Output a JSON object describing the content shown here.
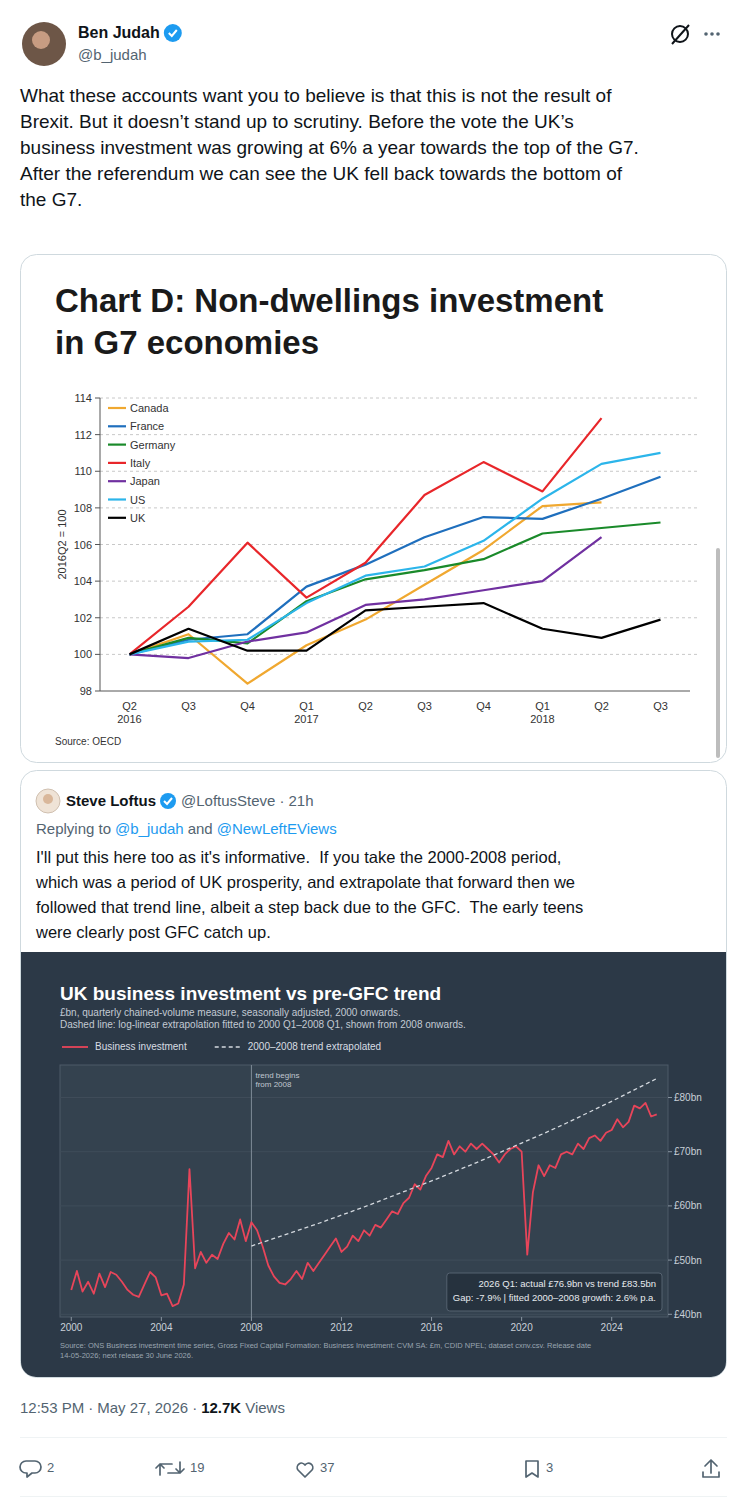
{
  "tweet": {
    "author": "Ben Judah",
    "handle": "@b_judah",
    "text_lines": [
      "What these accounts want you to believe is that this is not the result of",
      "Brexit. But it doesn’t stand up to scrutiny. Before the vote the UK’s",
      "business investment was growing at 6% a year towards the top of the G7.",
      "After the referendum we can see the UK fell back towards the bottom of",
      "the G7."
    ]
  },
  "chart_data": [
    {
      "type": "line",
      "title": "Chart D: Non-dwellings investment in G7 economies",
      "y_label": "2016Q2 = 100",
      "source": "Source: OECD",
      "categories": [
        "Q2 2016",
        "Q3",
        "Q4",
        "Q1 2017",
        "Q2",
        "Q3",
        "Q4",
        "Q1 2018",
        "Q2",
        "Q3"
      ],
      "ylim": [
        98,
        114
      ],
      "yticks": [
        98,
        100,
        102,
        104,
        106,
        108,
        110,
        112,
        114
      ],
      "grid": true,
      "legend": "top-left",
      "series": [
        {
          "name": "Canada",
          "color": "#f0a830",
          "values": [
            100,
            101.1,
            98.4,
            100.5,
            101.9,
            103.8,
            105.7,
            108.1,
            108.3,
            null
          ]
        },
        {
          "name": "France",
          "color": "#1f6fbd",
          "values": [
            100,
            100.8,
            101.1,
            103.7,
            104.9,
            106.4,
            107.5,
            107.4,
            108.5,
            109.7
          ]
        },
        {
          "name": "Germany",
          "color": "#1a8a2a",
          "values": [
            100,
            100.9,
            100.6,
            102.9,
            104.1,
            104.6,
            105.2,
            106.6,
            106.9,
            107.2
          ]
        },
        {
          "name": "Italy",
          "color": "#e8262a",
          "values": [
            100,
            102.6,
            106.1,
            103.1,
            105.0,
            108.7,
            110.5,
            108.9,
            112.9,
            null
          ]
        },
        {
          "name": "Japan",
          "color": "#7030a0",
          "values": [
            100,
            99.8,
            100.7,
            101.2,
            102.7,
            103.0,
            103.5,
            104.0,
            106.4,
            null
          ]
        },
        {
          "name": "US",
          "color": "#2cb5ea",
          "values": [
            100,
            100.7,
            100.8,
            102.8,
            104.3,
            104.8,
            106.2,
            108.5,
            110.4,
            111.0
          ]
        },
        {
          "name": "UK",
          "color": "#000000",
          "values": [
            100,
            101.4,
            100.2,
            100.2,
            102.4,
            102.6,
            102.8,
            101.4,
            100.9,
            101.9
          ]
        }
      ]
    },
    {
      "type": "line",
      "title": "UK business investment vs pre-GFC trend",
      "subtitle": [
        "£bn, quarterly chained-volume measure, seasonally adjusted, 2000 onwards.",
        "Dashed line: log-linear extrapolation fitted to 2000 Q1–2008 Q1, shown from 2008 onwards."
      ],
      "xlim": [
        1999.5,
        2026.5
      ],
      "xticks": [
        2000,
        2004,
        2008,
        2012,
        2016,
        2020,
        2024
      ],
      "ylim": [
        39.5,
        86
      ],
      "yticks": [
        {
          "value": 40,
          "label": "£40bn"
        },
        {
          "value": 50,
          "label": "£50bn"
        },
        {
          "value": 60,
          "label": "£60bn"
        },
        {
          "value": 70,
          "label": "£70bn"
        },
        {
          "value": 80,
          "label": "£80bn"
        }
      ],
      "grid": true,
      "legend": "top",
      "series": [
        {
          "name": "Business investment",
          "color": "#e8455a",
          "line_style": "solid",
          "x": [
            2000,
            2000.25,
            2000.5,
            2000.75,
            2001,
            2001.25,
            2001.5,
            2001.75,
            2002,
            2002.25,
            2002.5,
            2002.75,
            2003,
            2003.25,
            2003.5,
            2003.75,
            2004,
            2004.25,
            2004.5,
            2004.75,
            2005,
            2005.25,
            2005.5,
            2005.75,
            2006,
            2006.25,
            2006.5,
            2006.75,
            2007,
            2007.25,
            2007.5,
            2007.75,
            2008,
            2008.25,
            2008.5,
            2008.75,
            2009,
            2009.25,
            2009.5,
            2009.75,
            2010,
            2010.25,
            2010.5,
            2010.75,
            2011,
            2011.25,
            2011.5,
            2011.75,
            2012,
            2012.25,
            2012.5,
            2012.75,
            2013,
            2013.25,
            2013.5,
            2013.75,
            2014,
            2014.25,
            2014.5,
            2014.75,
            2015,
            2015.25,
            2015.5,
            2015.75,
            2016,
            2016.25,
            2016.5,
            2016.75,
            2017,
            2017.25,
            2017.5,
            2017.75,
            2018,
            2018.25,
            2018.5,
            2018.75,
            2019,
            2019.25,
            2019.5,
            2019.75,
            2020,
            2020.25,
            2020.5,
            2020.75,
            2021,
            2021.25,
            2021.5,
            2021.75,
            2022,
            2022.25,
            2022.5,
            2022.75,
            2023,
            2023.25,
            2023.5,
            2023.75,
            2024,
            2024.25,
            2024.5,
            2024.75,
            2025,
            2025.25,
            2025.5,
            2025.75,
            2026
          ],
          "values": [
            44.5,
            48.0,
            44.2,
            46.0,
            43.8,
            47.5,
            45.0,
            47.8,
            47.3,
            46.0,
            44.5,
            43.6,
            43.2,
            45.5,
            47.8,
            46.8,
            43.5,
            43.8,
            41.5,
            42.0,
            45.5,
            66.8,
            48.5,
            51.5,
            49.5,
            51.0,
            50.2,
            53.0,
            55.0,
            53.8,
            57.5,
            53.5,
            57.0,
            55.5,
            52.5,
            49.0,
            47.0,
            45.8,
            45.5,
            46.5,
            48.0,
            46.5,
            49.5,
            48.0,
            49.5,
            51.0,
            52.5,
            54.0,
            51.5,
            52.5,
            54.5,
            53.5,
            55.5,
            54.5,
            56.5,
            56.0,
            57.5,
            59.0,
            58.5,
            60.5,
            61.5,
            64.0,
            63.0,
            65.5,
            67.0,
            69.5,
            69.0,
            72.0,
            69.5,
            71.0,
            70.0,
            71.5,
            70.5,
            71.5,
            70.5,
            69.5,
            68.0,
            69.5,
            70.5,
            71.0,
            70.0,
            51.0,
            62.5,
            67.5,
            65.5,
            67.5,
            67.0,
            69.5,
            70.0,
            69.5,
            71.5,
            70.5,
            72.5,
            73.0,
            72.0,
            73.5,
            74.0,
            76.0,
            74.5,
            75.5,
            78.5,
            78.0,
            79.0,
            76.5,
            76.9
          ]
        },
        {
          "name": "2000–2008 trend extrapolated",
          "color": "#d4d9df",
          "line_style": "dashed",
          "x": [
            2008,
            2009,
            2010,
            2011,
            2012,
            2013,
            2014,
            2015,
            2016,
            2017,
            2018,
            2019,
            2020,
            2021,
            2022,
            2023,
            2024,
            2025,
            2026
          ],
          "values": [
            52.6,
            54.0,
            55.4,
            56.8,
            58.3,
            59.8,
            61.4,
            63.0,
            64.6,
            66.3,
            68.0,
            69.8,
            71.6,
            73.4,
            75.3,
            77.3,
            79.3,
            81.4,
            83.5
          ]
        }
      ],
      "vline": {
        "x": 2008,
        "text": [
          "trend begins",
          "from 2008"
        ]
      },
      "note_box": [
        "2026 Q1: actual £76.9bn vs trend £83.5bn",
        "Gap: -7.9% | fitted 2000–2008 growth: 2.6% p.a."
      ],
      "source": [
        "Source: ONS Business investment time series, Gross Fixed Capital Formation: Business Investment: CVM SA: £m, CDID NPEL; dataset cxnv.csv. Release date",
        "14-05-2026; next release 30 June 2026."
      ]
    }
  ],
  "quote": {
    "author": "Steve Loftus",
    "handle": "@LoftusSteve",
    "separator": "·",
    "age": "21h",
    "replying_to": {
      "prefix": "Replying to",
      "handles": [
        "@b_judah",
        "@NewLeftEViews"
      ],
      "joiner": "and"
    },
    "text_lines": [
      "I'll put this here too as it's informative.  If you take the 2000-2008 period,",
      "which was a period of UK prosperity, and extrapolate that forward then we",
      "followed that trend line, albeit a step back due to the GFC.  The early teens",
      "were clearly post GFC catch up."
    ]
  },
  "footer": {
    "time": "12:53 PM",
    "separator": "·",
    "date": "May 27, 2026",
    "views": "12.7K",
    "views_label": "Views",
    "replies": 2,
    "reposts": 19,
    "likes": 37,
    "bookmarks": 3
  }
}
